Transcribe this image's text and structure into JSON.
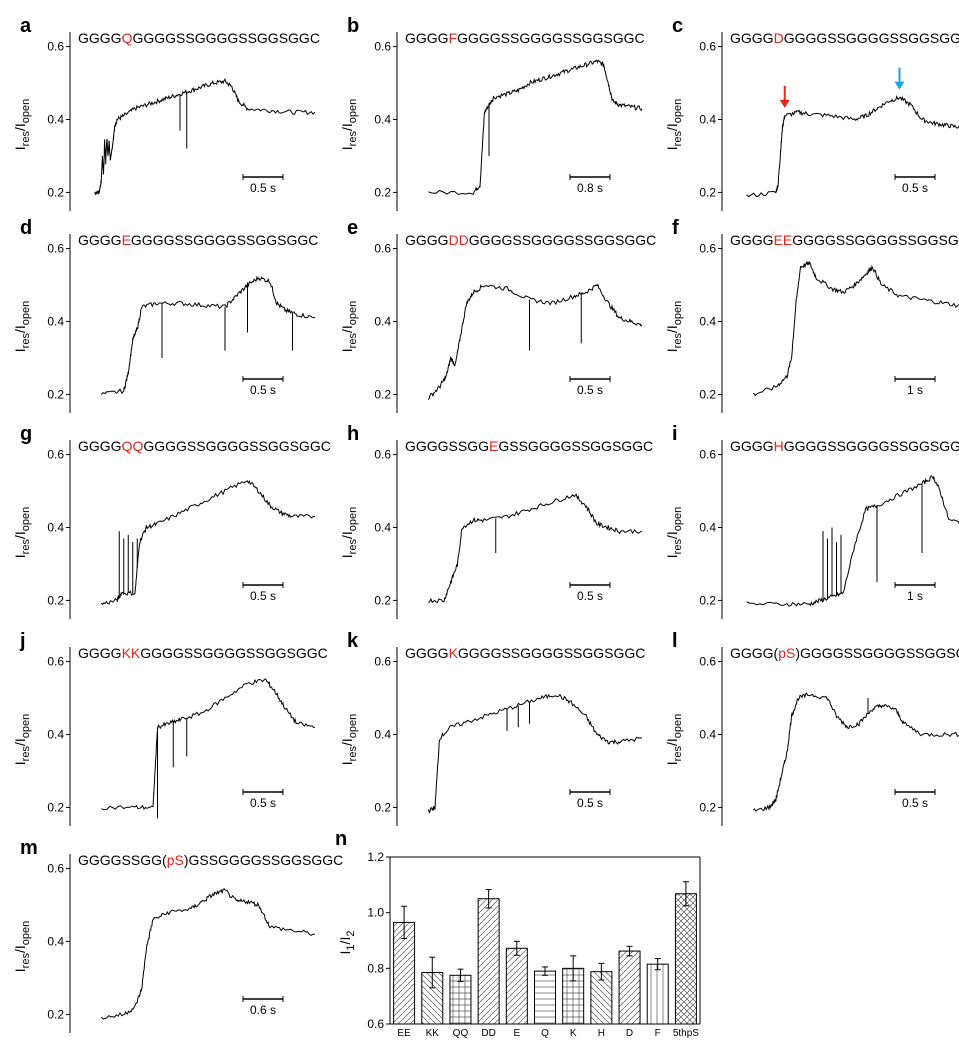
{
  "chart_data": [
    {
      "panel": "a",
      "type": "line",
      "sequence": [
        "GGGG",
        "Q",
        "GGGGSSGGGGSSGGSGGC"
      ],
      "ylabel": "Ires/Iopen",
      "yticks": [
        "0.2",
        "0.4",
        "0.6"
      ],
      "ylim": [
        0.16,
        0.64
      ],
      "scale_bar": "0.5 s",
      "trace": [
        [
          0.02,
          0.2
        ],
        [
          0.04,
          0.2
        ],
        [
          0.05,
          0.23
        ],
        [
          0.055,
          0.3
        ],
        [
          0.06,
          0.25
        ],
        [
          0.065,
          0.34
        ],
        [
          0.07,
          0.28
        ],
        [
          0.075,
          0.35
        ],
        [
          0.08,
          0.3
        ],
        [
          0.085,
          0.34
        ],
        [
          0.09,
          0.29
        ],
        [
          0.1,
          0.33
        ],
        [
          0.11,
          0.38
        ],
        [
          0.12,
          0.4
        ],
        [
          0.15,
          0.41
        ],
        [
          0.2,
          0.43
        ],
        [
          0.25,
          0.44
        ],
        [
          0.3,
          0.45
        ],
        [
          0.35,
          0.46
        ],
        [
          0.4,
          0.47
        ],
        [
          0.45,
          0.48
        ],
        [
          0.5,
          0.49
        ],
        [
          0.55,
          0.5
        ],
        [
          0.6,
          0.505
        ],
        [
          0.63,
          0.49
        ],
        [
          0.66,
          0.45
        ],
        [
          0.7,
          0.43
        ],
        [
          0.8,
          0.425
        ],
        [
          0.9,
          0.42
        ],
        [
          1.0,
          0.42
        ]
      ],
      "spikes": [
        [
          0.4,
          0.37
        ],
        [
          0.43,
          0.32
        ]
      ],
      "annotations": []
    },
    {
      "panel": "b",
      "type": "line",
      "sequence": [
        "GGGG",
        "F",
        "GGGGSSGGGGSSGGSGGC"
      ],
      "ylabel": "Ires/Iopen",
      "yticks": [
        "0.2",
        "0.4",
        "0.6"
      ],
      "ylim": [
        0.16,
        0.64
      ],
      "scale_bar": "0.8 s",
      "trace": [
        [
          0.05,
          0.2
        ],
        [
          0.25,
          0.2
        ],
        [
          0.28,
          0.22
        ],
        [
          0.3,
          0.42
        ],
        [
          0.32,
          0.44
        ],
        [
          0.34,
          0.46
        ],
        [
          0.4,
          0.47
        ],
        [
          0.45,
          0.48
        ],
        [
          0.5,
          0.5
        ],
        [
          0.55,
          0.51
        ],
        [
          0.6,
          0.52
        ],
        [
          0.65,
          0.53
        ],
        [
          0.7,
          0.54
        ],
        [
          0.75,
          0.55
        ],
        [
          0.8,
          0.56
        ],
        [
          0.83,
          0.55
        ],
        [
          0.85,
          0.5
        ],
        [
          0.87,
          0.45
        ],
        [
          0.9,
          0.44
        ],
        [
          0.95,
          0.435
        ],
        [
          1.0,
          0.43
        ]
      ],
      "spikes": [
        [
          0.32,
          0.3
        ]
      ],
      "annotations": []
    },
    {
      "panel": "c",
      "type": "line",
      "sequence": [
        "GGGG",
        "D",
        "GGGGSSGGGGSSGGSGGC"
      ],
      "ylabel": "Ires/Iopen",
      "yticks": [
        "0.2",
        "0.4",
        "0.6"
      ],
      "ylim": [
        0.16,
        0.64
      ],
      "scale_bar": "0.5 s",
      "trace": [
        [
          0.02,
          0.19
        ],
        [
          0.15,
          0.2
        ],
        [
          0.16,
          0.22
        ],
        [
          0.17,
          0.3
        ],
        [
          0.18,
          0.38
        ],
        [
          0.19,
          0.41
        ],
        [
          0.25,
          0.42
        ],
        [
          0.3,
          0.415
        ],
        [
          0.4,
          0.41
        ],
        [
          0.5,
          0.4
        ],
        [
          0.55,
          0.41
        ],
        [
          0.6,
          0.43
        ],
        [
          0.65,
          0.45
        ],
        [
          0.7,
          0.46
        ],
        [
          0.75,
          0.44
        ],
        [
          0.8,
          0.4
        ],
        [
          0.85,
          0.39
        ],
        [
          0.9,
          0.385
        ],
        [
          0.95,
          0.38
        ],
        [
          1.0,
          0.38
        ]
      ],
      "spikes": [],
      "annotations": [
        {
          "x": 0.19,
          "y": 0.41,
          "color": "#e8221c"
        },
        {
          "x": 0.7,
          "y": 0.46,
          "color": "#19a6e0"
        }
      ]
    },
    {
      "panel": "d",
      "type": "line",
      "sequence": [
        "GGGG",
        "E",
        "GGGGSSGGGGSSGGSGGC"
      ],
      "ylabel": "Ires/Iopen",
      "yticks": [
        "0.2",
        "0.4",
        "0.6"
      ],
      "ylim": [
        0.16,
        0.64
      ],
      "scale_bar": "0.5 s",
      "trace": [
        [
          0.05,
          0.2
        ],
        [
          0.15,
          0.21
        ],
        [
          0.17,
          0.26
        ],
        [
          0.19,
          0.35
        ],
        [
          0.21,
          0.38
        ],
        [
          0.23,
          0.44
        ],
        [
          0.3,
          0.45
        ],
        [
          0.4,
          0.45
        ],
        [
          0.5,
          0.445
        ],
        [
          0.6,
          0.44
        ],
        [
          0.65,
          0.47
        ],
        [
          0.7,
          0.5
        ],
        [
          0.75,
          0.52
        ],
        [
          0.8,
          0.51
        ],
        [
          0.83,
          0.45
        ],
        [
          0.87,
          0.43
        ],
        [
          0.92,
          0.42
        ],
        [
          1.0,
          0.41
        ]
      ],
      "spikes": [
        [
          0.32,
          0.3
        ],
        [
          0.6,
          0.32
        ],
        [
          0.7,
          0.37
        ],
        [
          0.9,
          0.32
        ]
      ],
      "annotations": []
    },
    {
      "panel": "e",
      "type": "line",
      "sequence": [
        "GGGG",
        "DD",
        "GGGGSSGGGGSSGGSGGC"
      ],
      "ylabel": "Ires/Iopen",
      "yticks": [
        "0.2",
        "0.4",
        "0.6"
      ],
      "ylim": [
        0.16,
        0.64
      ],
      "scale_bar": "0.5 s",
      "trace": [
        [
          0.05,
          0.19
        ],
        [
          0.1,
          0.22
        ],
        [
          0.13,
          0.25
        ],
        [
          0.15,
          0.3
        ],
        [
          0.17,
          0.28
        ],
        [
          0.19,
          0.35
        ],
        [
          0.22,
          0.45
        ],
        [
          0.25,
          0.48
        ],
        [
          0.3,
          0.5
        ],
        [
          0.4,
          0.49
        ],
        [
          0.5,
          0.46
        ],
        [
          0.6,
          0.45
        ],
        [
          0.7,
          0.47
        ],
        [
          0.75,
          0.48
        ],
        [
          0.8,
          0.5
        ],
        [
          0.85,
          0.45
        ],
        [
          0.9,
          0.41
        ],
        [
          0.95,
          0.4
        ],
        [
          1.0,
          0.39
        ]
      ],
      "spikes": [
        [
          0.5,
          0.32
        ],
        [
          0.73,
          0.34
        ]
      ],
      "annotations": []
    },
    {
      "panel": "f",
      "type": "line",
      "sequence": [
        "GGGG",
        "EE",
        "GGGGSSGGGGSSGGSGGC"
      ],
      "ylabel": "Ires/Iopen",
      "yticks": [
        "0.2",
        "0.4",
        "0.6"
      ],
      "ylim": [
        0.16,
        0.64
      ],
      "scale_bar": "1 s",
      "trace": [
        [
          0.05,
          0.2
        ],
        [
          0.15,
          0.22
        ],
        [
          0.2,
          0.25
        ],
        [
          0.22,
          0.3
        ],
        [
          0.24,
          0.45
        ],
        [
          0.26,
          0.55
        ],
        [
          0.3,
          0.56
        ],
        [
          0.33,
          0.52
        ],
        [
          0.4,
          0.49
        ],
        [
          0.45,
          0.48
        ],
        [
          0.5,
          0.5
        ],
        [
          0.55,
          0.53
        ],
        [
          0.58,
          0.55
        ],
        [
          0.62,
          0.5
        ],
        [
          0.7,
          0.47
        ],
        [
          0.8,
          0.46
        ],
        [
          0.9,
          0.45
        ],
        [
          1.0,
          0.44
        ]
      ],
      "spikes": [],
      "annotations": []
    },
    {
      "panel": "g",
      "type": "line",
      "sequence": [
        "GGGG",
        "QQ",
        "GGGGSSGGGGSSGGSGGC"
      ],
      "ylabel": "Ires/Iopen",
      "yticks": [
        "0.2",
        "0.4",
        "0.6"
      ],
      "ylim": [
        0.16,
        0.64
      ],
      "scale_bar": "0.5 s",
      "trace": [
        [
          0.05,
          0.19
        ],
        [
          0.12,
          0.2
        ],
        [
          0.14,
          0.22
        ],
        [
          0.2,
          0.22
        ],
        [
          0.22,
          0.36
        ],
        [
          0.25,
          0.4
        ],
        [
          0.3,
          0.41
        ],
        [
          0.4,
          0.44
        ],
        [
          0.5,
          0.47
        ],
        [
          0.6,
          0.5
        ],
        [
          0.7,
          0.53
        ],
        [
          0.75,
          0.5
        ],
        [
          0.8,
          0.46
        ],
        [
          0.85,
          0.44
        ],
        [
          0.9,
          0.43
        ],
        [
          1.0,
          0.43
        ]
      ],
      "spikes": [
        [
          0.13,
          0.39
        ],
        [
          0.15,
          0.37
        ],
        [
          0.17,
          0.38
        ],
        [
          0.19,
          0.36
        ],
        [
          0.21,
          0.37
        ]
      ],
      "annotations": []
    },
    {
      "panel": "h",
      "type": "line",
      "sequence": [
        "GGGGSSGG",
        "E",
        "GSSGGGGSSGGSGGC"
      ],
      "ylabel": "Ires/Iopen",
      "yticks": [
        "0.2",
        "0.4",
        "0.6"
      ],
      "ylim": [
        0.16,
        0.64
      ],
      "scale_bar": "0.5 s",
      "trace": [
        [
          0.05,
          0.2
        ],
        [
          0.12,
          0.2
        ],
        [
          0.15,
          0.25
        ],
        [
          0.18,
          0.3
        ],
        [
          0.2,
          0.4
        ],
        [
          0.25,
          0.42
        ],
        [
          0.3,
          0.42
        ],
        [
          0.4,
          0.43
        ],
        [
          0.5,
          0.45
        ],
        [
          0.6,
          0.47
        ],
        [
          0.7,
          0.49
        ],
        [
          0.75,
          0.46
        ],
        [
          0.8,
          0.41
        ],
        [
          0.85,
          0.4
        ],
        [
          0.9,
          0.39
        ],
        [
          1.0,
          0.39
        ]
      ],
      "spikes": [
        [
          0.35,
          0.33
        ]
      ],
      "annotations": []
    },
    {
      "panel": "i",
      "type": "line",
      "sequence": [
        "GGGG",
        "H",
        "GGGGSSGGGGSSGGSGGC"
      ],
      "ylabel": "Ires/Iopen",
      "yticks": [
        "0.2",
        "0.4",
        "0.6"
      ],
      "ylim": [
        0.16,
        0.64
      ],
      "scale_bar": "1 s",
      "trace": [
        [
          0.02,
          0.19
        ],
        [
          0.2,
          0.19
        ],
        [
          0.3,
          0.19
        ],
        [
          0.35,
          0.2
        ],
        [
          0.4,
          0.21
        ],
        [
          0.45,
          0.22
        ],
        [
          0.5,
          0.35
        ],
        [
          0.55,
          0.45
        ],
        [
          0.6,
          0.46
        ],
        [
          0.7,
          0.49
        ],
        [
          0.8,
          0.52
        ],
        [
          0.85,
          0.54
        ],
        [
          0.88,
          0.5
        ],
        [
          0.92,
          0.42
        ],
        [
          1.0,
          0.41
        ]
      ],
      "spikes": [
        [
          0.36,
          0.39
        ],
        [
          0.38,
          0.37
        ],
        [
          0.4,
          0.4
        ],
        [
          0.42,
          0.36
        ],
        [
          0.44,
          0.38
        ],
        [
          0.6,
          0.25
        ],
        [
          0.8,
          0.33
        ]
      ],
      "annotations": []
    },
    {
      "panel": "j",
      "type": "line",
      "sequence": [
        "GGGG",
        "KK",
        "GGGGSSGGGGSSGGSGGC"
      ],
      "ylabel": "Ires/Iopen",
      "yticks": [
        "0.2",
        "0.4",
        "0.6"
      ],
      "ylim": [
        0.16,
        0.64
      ],
      "scale_bar": "0.5 s",
      "trace": [
        [
          0.05,
          0.2
        ],
        [
          0.2,
          0.2
        ],
        [
          0.28,
          0.2
        ],
        [
          0.3,
          0.42
        ],
        [
          0.35,
          0.43
        ],
        [
          0.4,
          0.44
        ],
        [
          0.5,
          0.46
        ],
        [
          0.6,
          0.5
        ],
        [
          0.7,
          0.54
        ],
        [
          0.78,
          0.55
        ],
        [
          0.82,
          0.52
        ],
        [
          0.87,
          0.47
        ],
        [
          0.92,
          0.43
        ],
        [
          1.0,
          0.42
        ]
      ],
      "spikes": [
        [
          0.3,
          0.17
        ],
        [
          0.37,
          0.31
        ],
        [
          0.43,
          0.34
        ]
      ],
      "annotations": []
    },
    {
      "panel": "k",
      "type": "line",
      "sequence": [
        "GGGG",
        "K",
        "GGGGSSGGGGSSGGSGGC"
      ],
      "ylabel": "Ires/Iopen",
      "yticks": [
        "0.2",
        "0.4",
        "0.6"
      ],
      "ylim": [
        0.16,
        0.64
      ],
      "scale_bar": "0.5 s",
      "trace": [
        [
          0.05,
          0.19
        ],
        [
          0.08,
          0.2
        ],
        [
          0.1,
          0.39
        ],
        [
          0.15,
          0.42
        ],
        [
          0.25,
          0.44
        ],
        [
          0.35,
          0.46
        ],
        [
          0.45,
          0.48
        ],
        [
          0.55,
          0.5
        ],
        [
          0.62,
          0.51
        ],
        [
          0.68,
          0.49
        ],
        [
          0.75,
          0.45
        ],
        [
          0.8,
          0.4
        ],
        [
          0.85,
          0.38
        ],
        [
          0.9,
          0.38
        ],
        [
          1.0,
          0.39
        ]
      ],
      "spikes": [
        [
          0.4,
          0.41
        ],
        [
          0.45,
          0.42
        ],
        [
          0.5,
          0.43
        ]
      ],
      "annotations": []
    },
    {
      "panel": "l",
      "type": "line",
      "sequence": [
        "GGGG(",
        "pS",
        ")GGGGSSGGGGSSGGSGGC"
      ],
      "ylabel": "Ires/Iopen",
      "yticks": [
        "0.2",
        "0.4",
        "0.6"
      ],
      "ylim": [
        0.16,
        0.64
      ],
      "scale_bar": "0.5 s",
      "trace": [
        [
          0.05,
          0.19
        ],
        [
          0.12,
          0.2
        ],
        [
          0.15,
          0.22
        ],
        [
          0.18,
          0.3
        ],
        [
          0.2,
          0.35
        ],
        [
          0.22,
          0.45
        ],
        [
          0.25,
          0.5
        ],
        [
          0.3,
          0.51
        ],
        [
          0.38,
          0.5
        ],
        [
          0.42,
          0.45
        ],
        [
          0.47,
          0.42
        ],
        [
          0.52,
          0.43
        ],
        [
          0.58,
          0.47
        ],
        [
          0.62,
          0.48
        ],
        [
          0.68,
          0.47
        ],
        [
          0.72,
          0.43
        ],
        [
          0.8,
          0.4
        ],
        [
          0.9,
          0.4
        ],
        [
          1.0,
          0.4
        ]
      ],
      "spikes": [
        [
          0.56,
          0.5
        ]
      ],
      "annotations": []
    },
    {
      "panel": "m",
      "type": "line",
      "sequence": [
        "GGGGSSGG(",
        "pS",
        ")GSSGGGGSSGGSGGC"
      ],
      "ylabel": "Ires/Iopen",
      "yticks": [
        "0.2",
        "0.4",
        "0.6"
      ],
      "ylim": [
        0.16,
        0.64
      ],
      "scale_bar": "0.6 s",
      "trace": [
        [
          0.05,
          0.19
        ],
        [
          0.15,
          0.2
        ],
        [
          0.2,
          0.22
        ],
        [
          0.23,
          0.27
        ],
        [
          0.25,
          0.38
        ],
        [
          0.28,
          0.46
        ],
        [
          0.35,
          0.48
        ],
        [
          0.45,
          0.49
        ],
        [
          0.5,
          0.51
        ],
        [
          0.55,
          0.53
        ],
        [
          0.6,
          0.54
        ],
        [
          0.65,
          0.51
        ],
        [
          0.7,
          0.51
        ],
        [
          0.75,
          0.5
        ],
        [
          0.8,
          0.44
        ],
        [
          0.9,
          0.43
        ],
        [
          1.0,
          0.42
        ]
      ],
      "spikes": [],
      "annotations": []
    },
    {
      "panel": "n",
      "type": "bar",
      "ylabel": "I1/I2",
      "ylim": [
        0.6,
        1.2
      ],
      "yticks": [
        "0.6",
        "0.8",
        "1.0",
        "1.2"
      ],
      "categories": [
        "EE",
        "KK",
        "QQ",
        "DD",
        "E",
        "Q",
        "K",
        "H",
        "D",
        "F",
        "5thpS"
      ],
      "values": [
        0.965,
        0.785,
        0.775,
        1.05,
        0.872,
        0.79,
        0.8,
        0.788,
        0.862,
        0.815,
        1.068
      ],
      "errors": [
        0.058,
        0.055,
        0.022,
        0.033,
        0.025,
        0.015,
        0.045,
        0.03,
        0.017,
        0.02,
        0.043
      ]
    }
  ],
  "colors": {
    "highlight": "#e8221c",
    "arrow_red": "#e8221c",
    "arrow_blue": "#19a6e0"
  }
}
